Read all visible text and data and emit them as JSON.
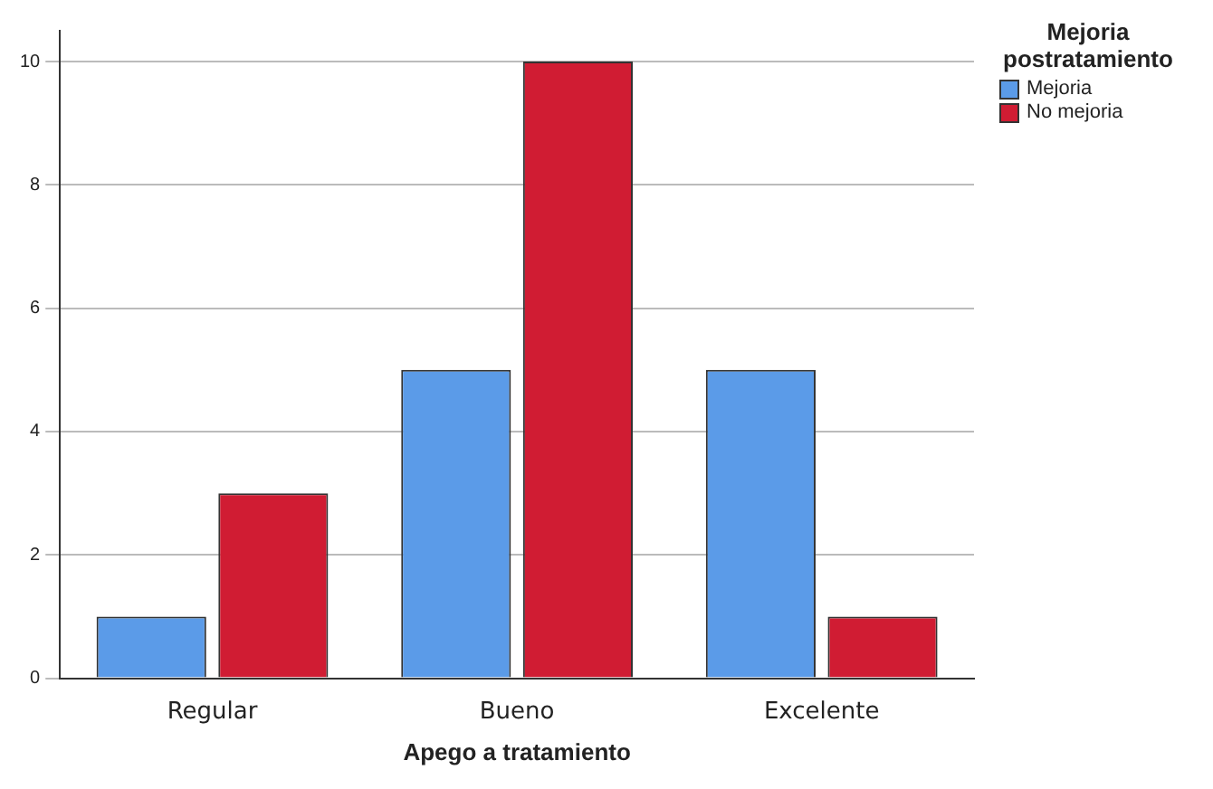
{
  "chart_data": {
    "type": "bar",
    "xlabel": "Apego a tratamiento",
    "legend_title": "Mejoria postratamiento",
    "categories": [
      "Regular",
      "Bueno",
      "Excelente"
    ],
    "series": [
      {
        "name": "Mejoria",
        "color": "#5b9be8",
        "values": [
          1,
          5,
          5
        ]
      },
      {
        "name": "No mejoria",
        "color": "#d01c33",
        "values": [
          3,
          10,
          1
        ]
      }
    ],
    "ylim": [
      0,
      10.5
    ],
    "yticks": [
      0,
      2,
      4,
      6,
      8,
      10
    ],
    "grid": "y",
    "legend": "top right"
  }
}
